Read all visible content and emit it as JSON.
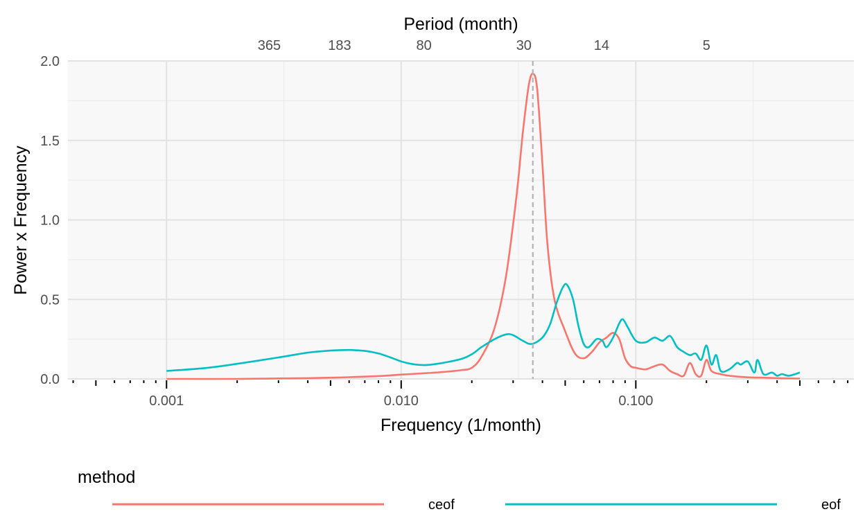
{
  "chart_data": {
    "type": "line",
    "title": "",
    "xlabel": "Frequency (1/month)",
    "ylabel": "Power x Frequency",
    "x2label": "Period (month)",
    "x_scale": "log10",
    "xlim": [
      0.00038,
      0.85
    ],
    "ylim": [
      0,
      2.0
    ],
    "x_ticks": [
      0.001,
      0.01,
      0.1
    ],
    "x_tick_labels": [
      "0.001",
      "0.010",
      "0.100"
    ],
    "y_ticks": [
      0,
      0.5,
      1.0,
      1.5,
      2.0
    ],
    "y_tick_labels": [
      "0.0",
      "0.5",
      "1.0",
      "1.5",
      "2.0"
    ],
    "period_ticks": [
      365,
      183,
      80,
      30,
      14,
      5
    ],
    "period_tick_labels": [
      "365",
      "183",
      "80",
      "30",
      "14",
      "5"
    ],
    "vline_x": 0.0364,
    "grid": true,
    "legend": {
      "title": "method",
      "position": "bottom",
      "entries": [
        {
          "label": "ceof",
          "color": "#F8766D"
        },
        {
          "label": "eof",
          "color": "#00BFC4"
        }
      ]
    },
    "series": [
      {
        "name": "ceof",
        "color": "#F8766D",
        "points": [
          [
            0.001,
            0.0
          ],
          [
            0.002,
            0.0
          ],
          [
            0.003,
            0.003
          ],
          [
            0.004,
            0.005
          ],
          [
            0.005,
            0.008
          ],
          [
            0.006,
            0.011
          ],
          [
            0.008,
            0.018
          ],
          [
            0.01,
            0.027
          ],
          [
            0.012,
            0.034
          ],
          [
            0.015,
            0.043
          ],
          [
            0.018,
            0.055
          ],
          [
            0.02,
            0.07
          ],
          [
            0.022,
            0.14
          ],
          [
            0.025,
            0.32
          ],
          [
            0.028,
            0.65
          ],
          [
            0.031,
            1.15
          ],
          [
            0.033,
            1.55
          ],
          [
            0.035,
            1.85
          ],
          [
            0.0365,
            1.92
          ],
          [
            0.038,
            1.82
          ],
          [
            0.04,
            1.35
          ],
          [
            0.042,
            0.85
          ],
          [
            0.045,
            0.5
          ],
          [
            0.05,
            0.3
          ],
          [
            0.055,
            0.16
          ],
          [
            0.06,
            0.13
          ],
          [
            0.065,
            0.17
          ],
          [
            0.07,
            0.23
          ],
          [
            0.075,
            0.26
          ],
          [
            0.08,
            0.29
          ],
          [
            0.085,
            0.25
          ],
          [
            0.09,
            0.13
          ],
          [
            0.095,
            0.08
          ],
          [
            0.1,
            0.07
          ],
          [
            0.11,
            0.06
          ],
          [
            0.12,
            0.08
          ],
          [
            0.13,
            0.09
          ],
          [
            0.14,
            0.05
          ],
          [
            0.15,
            0.03
          ],
          [
            0.16,
            0.02
          ],
          [
            0.17,
            0.1
          ],
          [
            0.18,
            0.03
          ],
          [
            0.19,
            0.02
          ],
          [
            0.2,
            0.12
          ],
          [
            0.21,
            0.05
          ],
          [
            0.23,
            0.03
          ],
          [
            0.25,
            0.02
          ],
          [
            0.3,
            0.01
          ],
          [
            0.35,
            0.008
          ],
          [
            0.4,
            0.005
          ],
          [
            0.5,
            0.002
          ]
        ]
      },
      {
        "name": "eof",
        "color": "#00BFC4",
        "points": [
          [
            0.001,
            0.05
          ],
          [
            0.0015,
            0.07
          ],
          [
            0.002,
            0.095
          ],
          [
            0.003,
            0.135
          ],
          [
            0.004,
            0.165
          ],
          [
            0.005,
            0.178
          ],
          [
            0.006,
            0.182
          ],
          [
            0.007,
            0.176
          ],
          [
            0.008,
            0.16
          ],
          [
            0.009,
            0.135
          ],
          [
            0.01,
            0.11
          ],
          [
            0.011,
            0.095
          ],
          [
            0.012,
            0.088
          ],
          [
            0.013,
            0.088
          ],
          [
            0.015,
            0.1
          ],
          [
            0.018,
            0.125
          ],
          [
            0.02,
            0.155
          ],
          [
            0.022,
            0.2
          ],
          [
            0.025,
            0.25
          ],
          [
            0.028,
            0.28
          ],
          [
            0.03,
            0.275
          ],
          [
            0.033,
            0.24
          ],
          [
            0.036,
            0.22
          ],
          [
            0.04,
            0.26
          ],
          [
            0.043,
            0.34
          ],
          [
            0.046,
            0.48
          ],
          [
            0.049,
            0.58
          ],
          [
            0.051,
            0.59
          ],
          [
            0.054,
            0.5
          ],
          [
            0.057,
            0.33
          ],
          [
            0.06,
            0.22
          ],
          [
            0.063,
            0.2
          ],
          [
            0.068,
            0.25
          ],
          [
            0.072,
            0.24
          ],
          [
            0.075,
            0.2
          ],
          [
            0.08,
            0.26
          ],
          [
            0.085,
            0.35
          ],
          [
            0.088,
            0.375
          ],
          [
            0.092,
            0.33
          ],
          [
            0.1,
            0.24
          ],
          [
            0.11,
            0.23
          ],
          [
            0.12,
            0.26
          ],
          [
            0.13,
            0.24
          ],
          [
            0.14,
            0.27
          ],
          [
            0.15,
            0.2
          ],
          [
            0.16,
            0.17
          ],
          [
            0.17,
            0.15
          ],
          [
            0.18,
            0.16
          ],
          [
            0.19,
            0.12
          ],
          [
            0.2,
            0.21
          ],
          [
            0.21,
            0.09
          ],
          [
            0.22,
            0.15
          ],
          [
            0.23,
            0.05
          ],
          [
            0.25,
            0.06
          ],
          [
            0.27,
            0.1
          ],
          [
            0.28,
            0.09
          ],
          [
            0.3,
            0.11
          ],
          [
            0.32,
            0.04
          ],
          [
            0.33,
            0.12
          ],
          [
            0.35,
            0.03
          ],
          [
            0.38,
            0.04
          ],
          [
            0.4,
            0.02
          ],
          [
            0.42,
            0.03
          ],
          [
            0.45,
            0.02
          ],
          [
            0.5,
            0.04
          ]
        ]
      }
    ]
  }
}
